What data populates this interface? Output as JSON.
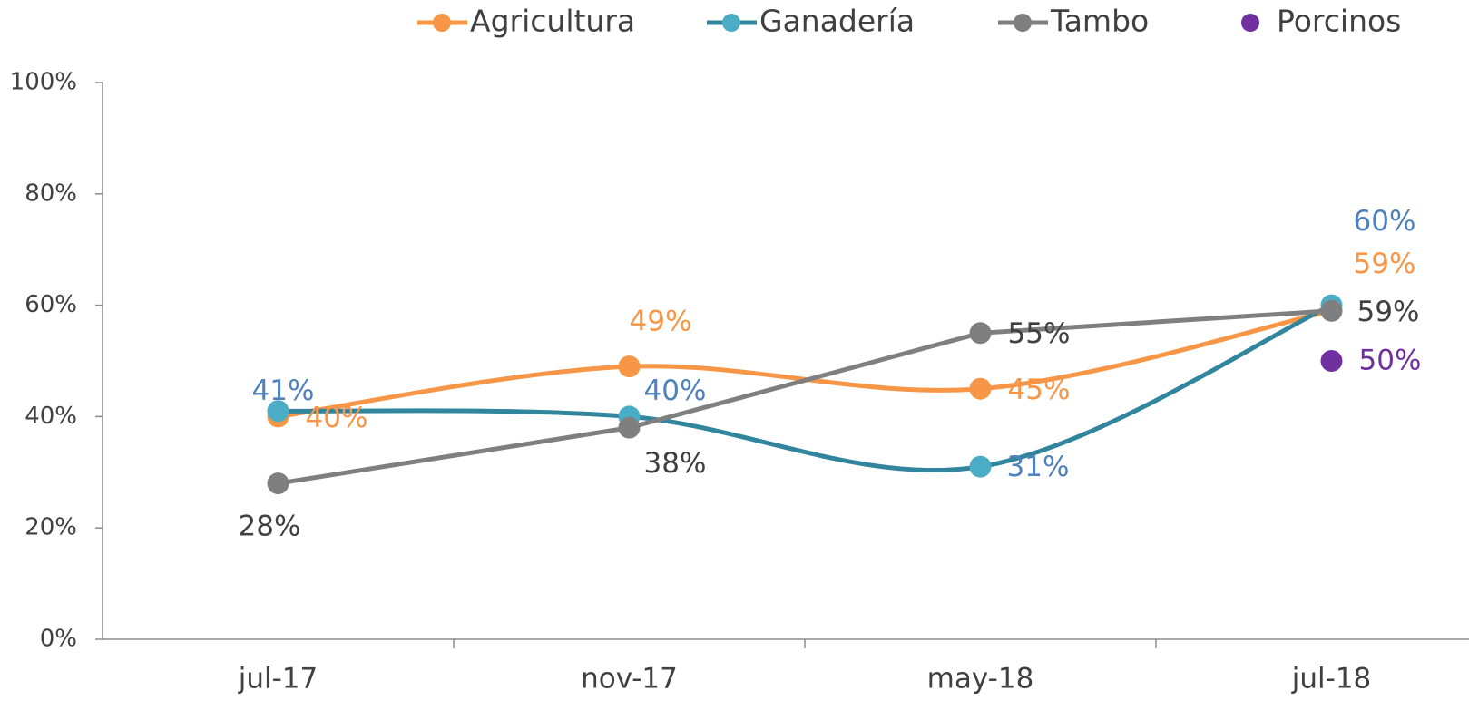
{
  "chart_data": {
    "type": "line",
    "categories": [
      "jul-17",
      "nov-17",
      "may-18",
      "jul-18"
    ],
    "series": [
      {
        "name": "Agricultura",
        "color": "#f79646",
        "smooth": true,
        "values": [
          40,
          49,
          45,
          59
        ],
        "value_labels": [
          "40%",
          "49%",
          "45%",
          "59%"
        ]
      },
      {
        "name": "Ganadería",
        "color": "#31859c",
        "marker_color": "#4bacc6",
        "label_color": "#4f81bd",
        "smooth": true,
        "values": [
          41,
          40,
          31,
          60
        ],
        "value_labels": [
          "41%",
          "40%",
          "31%",
          "60%"
        ]
      },
      {
        "name": "Tambo",
        "color": "#7f7f7f",
        "label_color": "#404040",
        "smooth": false,
        "values": [
          28,
          38,
          55,
          59
        ],
        "value_labels": [
          "28%",
          "38%",
          "55%",
          "59%"
        ]
      },
      {
        "name": "Porcinos",
        "color": "#7030a0",
        "smooth": false,
        "values": [
          null,
          null,
          null,
          50
        ],
        "value_labels": [
          null,
          null,
          null,
          "50%"
        ]
      }
    ],
    "ylim": [
      0,
      100
    ],
    "yticks": [
      {
        "value": 0,
        "label": "0%"
      },
      {
        "value": 20,
        "label": "20%"
      },
      {
        "value": 40,
        "label": "40%"
      },
      {
        "value": 60,
        "label": "60%"
      },
      {
        "value": 80,
        "label": "80%"
      },
      {
        "value": 100,
        "label": "100%"
      }
    ],
    "legend": "top"
  }
}
